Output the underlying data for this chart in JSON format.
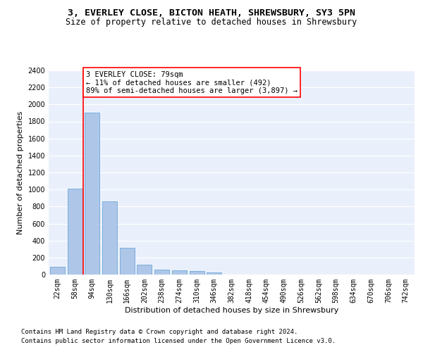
{
  "title_line1": "3, EVERLEY CLOSE, BICTON HEATH, SHREWSBURY, SY3 5PN",
  "title_line2": "Size of property relative to detached houses in Shrewsbury",
  "xlabel": "Distribution of detached houses by size in Shrewsbury",
  "ylabel": "Number of detached properties",
  "footnote1": "Contains HM Land Registry data © Crown copyright and database right 2024.",
  "footnote2": "Contains public sector information licensed under the Open Government Licence v3.0.",
  "bar_labels": [
    "22sqm",
    "58sqm",
    "94sqm",
    "130sqm",
    "166sqm",
    "202sqm",
    "238sqm",
    "274sqm",
    "310sqm",
    "346sqm",
    "382sqm",
    "418sqm",
    "454sqm",
    "490sqm",
    "526sqm",
    "562sqm",
    "598sqm",
    "634sqm",
    "670sqm",
    "706sqm",
    "742sqm"
  ],
  "bar_values": [
    95,
    1010,
    1900,
    860,
    315,
    115,
    60,
    50,
    40,
    25,
    0,
    0,
    0,
    0,
    0,
    0,
    0,
    0,
    0,
    0,
    0
  ],
  "bar_color": "#aec6e8",
  "bar_edge_color": "#5a9fd4",
  "background_color": "#eaf0fb",
  "grid_color": "#ffffff",
  "vline_color": "red",
  "annotation_text": "3 EVERLEY CLOSE: 79sqm\n← 11% of detached houses are smaller (492)\n89% of semi-detached houses are larger (3,897) →",
  "annotation_box_color": "white",
  "annotation_box_edge_color": "red",
  "ylim": [
    0,
    2400
  ],
  "yticks": [
    0,
    200,
    400,
    600,
    800,
    1000,
    1200,
    1400,
    1600,
    1800,
    2000,
    2200,
    2400
  ],
  "title_fontsize": 9.5,
  "subtitle_fontsize": 8.5,
  "axis_label_fontsize": 8,
  "tick_fontsize": 7,
  "annotation_fontsize": 7.5,
  "footnote_fontsize": 6.5
}
